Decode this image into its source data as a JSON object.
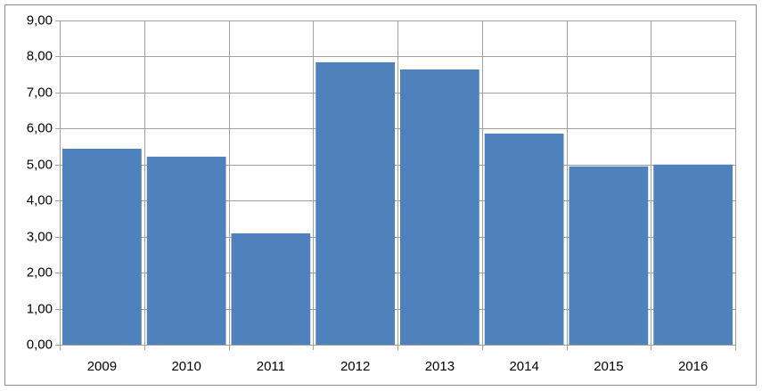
{
  "chart_data": {
    "type": "bar",
    "categories": [
      "2009",
      "2010",
      "2011",
      "2012",
      "2013",
      "2014",
      "2015",
      "2016"
    ],
    "values": [
      5.44,
      5.22,
      3.09,
      7.84,
      7.64,
      5.86,
      4.95,
      5.0
    ],
    "color": "#4f81bd",
    "ylim": [
      0,
      9
    ],
    "yticks": [
      {
        "value": 0,
        "label": "0,00"
      },
      {
        "value": 1,
        "label": "1,00"
      },
      {
        "value": 2,
        "label": "2,00"
      },
      {
        "value": 3,
        "label": "3,00"
      },
      {
        "value": 4,
        "label": "4,00"
      },
      {
        "value": 5,
        "label": "5,00"
      },
      {
        "value": 6,
        "label": "6,00"
      },
      {
        "value": 7,
        "label": "7,00"
      },
      {
        "value": 8,
        "label": "8,00"
      },
      {
        "value": 9,
        "label": "9,00"
      }
    ],
    "grid": true
  }
}
